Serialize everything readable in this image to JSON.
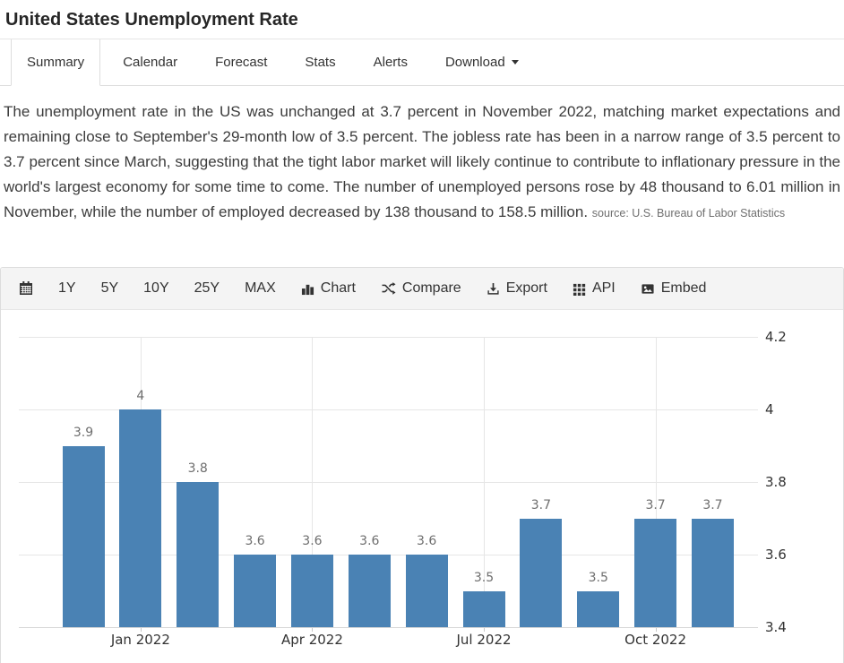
{
  "header": {
    "title": "United States Unemployment Rate"
  },
  "tabs": [
    {
      "label": "Summary",
      "active": true
    },
    {
      "label": "Calendar",
      "active": false
    },
    {
      "label": "Forecast",
      "active": false
    },
    {
      "label": "Stats",
      "active": false
    },
    {
      "label": "Alerts",
      "active": false
    },
    {
      "label": "Download",
      "active": false,
      "has_caret": true
    }
  ],
  "summary": {
    "text": "The unemployment rate in the US was unchanged at 3.7 percent in November 2022, matching market expectations and remaining close to September's 29-month low of 3.5 percent. The jobless rate has been in a narrow range of 3.5 percent to 3.7 percent since March, suggesting that the tight labor market will likely continue to contribute to inflationary pressure in the world's largest economy for some time to come. The number of unemployed persons rose by 48 thousand to 6.01 million in November, while the number of employed decreased by 138 thousand to 158.5 million.",
    "source": "source: U.S. Bureau of Labor Statistics"
  },
  "toolbar": {
    "items": [
      {
        "icon": "calendar-icon",
        "label": ""
      },
      {
        "label": "1Y"
      },
      {
        "label": "5Y"
      },
      {
        "label": "10Y"
      },
      {
        "label": "25Y"
      },
      {
        "label": "MAX"
      },
      {
        "icon": "bar-chart-icon",
        "label": "Chart"
      },
      {
        "icon": "shuffle-icon",
        "label": "Compare"
      },
      {
        "icon": "download-icon",
        "label": "Export"
      },
      {
        "icon": "grid-icon",
        "label": "API"
      },
      {
        "icon": "image-icon",
        "label": "Embed"
      }
    ]
  },
  "chart_data": {
    "type": "bar",
    "title": "United States Unemployment Rate",
    "unit": "percent",
    "values": [
      3.9,
      4,
      3.8,
      3.6,
      3.6,
      3.6,
      3.6,
      3.5,
      3.7,
      3.5,
      3.7,
      3.7
    ],
    "bar_labels": [
      "3.9",
      "4",
      "3.8",
      "3.6",
      "3.6",
      "3.6",
      "3.6",
      "3.5",
      "3.7",
      "3.5",
      "3.7",
      "3.7"
    ],
    "x_tick_labels": [
      "Jan 2022",
      "Apr 2022",
      "Jul 2022",
      "Oct 2022"
    ],
    "x_tick_indices": [
      1,
      4,
      7,
      10
    ],
    "y_ticks": [
      {
        "label": "4.2",
        "value": 4.2
      },
      {
        "label": "4",
        "value": 4
      },
      {
        "label": "3.8",
        "value": 3.8
      },
      {
        "label": "3.6",
        "value": 3.6
      },
      {
        "label": "3.4",
        "value": 3.4
      }
    ],
    "ylim": [
      3.4,
      4.2
    ],
    "grid": true,
    "legend": "none",
    "bar_color": "#4a82b4"
  },
  "colors": {
    "accent_bar": "#4a82b4",
    "toolbar_bg": "#f4f4f4",
    "border": "#dddddd",
    "gridline": "#e6e6e6",
    "text": "#333333",
    "muted_label": "#6e6e6e"
  }
}
